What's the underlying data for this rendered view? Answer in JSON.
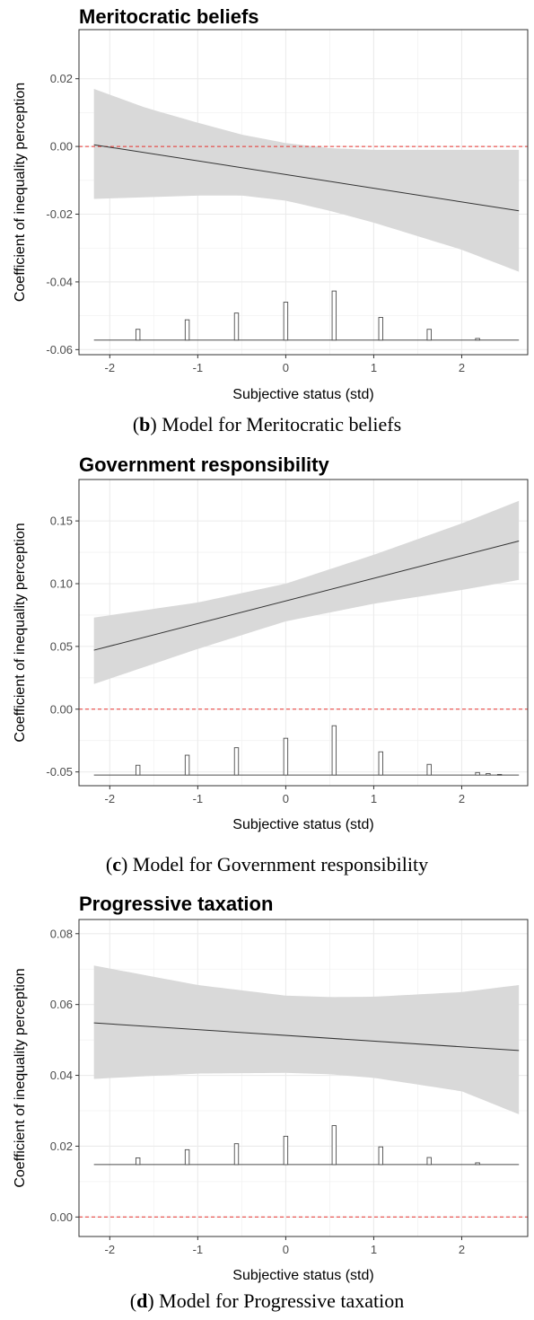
{
  "chart_data": [
    {
      "type": "line",
      "title": "Meritocratic beliefs",
      "xlabel": "Subjective status (std)",
      "ylabel": "Coefficient of inequality perception",
      "xlim": [
        -2.35,
        2.75
      ],
      "ylim": [
        -0.0615,
        0.0345
      ],
      "xticks": [
        -2,
        -1,
        0,
        1,
        2
      ],
      "xtick_labels": [
        "-2",
        "-1",
        "0",
        "1",
        "2"
      ],
      "yticks": [
        -0.06,
        -0.04,
        -0.02,
        0.0,
        0.02
      ],
      "ytick_labels": [
        "-0.06",
        "-0.04",
        "-0.02",
        "0.00",
        "0.02"
      ],
      "grid": true,
      "reference_line": {
        "y": 0,
        "color": "#e8332e",
        "style": "dashed"
      },
      "ribbon_color": "#d9d9d9",
      "line": {
        "x": [
          -2.18,
          2.65
        ],
        "y": [
          0.0005,
          -0.019
        ]
      },
      "ribbon": {
        "x": [
          -2.18,
          -1.6,
          -1.0,
          -0.5,
          0.0,
          0.5,
          1.0,
          1.5,
          2.0,
          2.65
        ],
        "upper": [
          0.017,
          0.0115,
          0.007,
          0.0035,
          0.001,
          -0.0005,
          -0.001,
          -0.001,
          -0.001,
          -0.001
        ],
        "lower": [
          -0.0155,
          -0.015,
          -0.0145,
          -0.0145,
          -0.016,
          -0.019,
          -0.0225,
          -0.0265,
          -0.0305,
          -0.037
        ]
      },
      "histogram": {
        "baseline": -0.0572,
        "x": [
          -1.68,
          -1.12,
          -0.56,
          0.0,
          0.55,
          1.08,
          1.63,
          2.18
        ],
        "top": [
          -0.054,
          -0.0512,
          -0.0492,
          -0.046,
          -0.0427,
          -0.0505,
          -0.054,
          -0.0567
        ]
      }
    },
    {
      "type": "line",
      "title": "Government responsibility",
      "xlabel": "Subjective status (std)",
      "ylabel": "Coefficient of inequality perception",
      "xlim": [
        -2.35,
        2.75
      ],
      "ylim": [
        -0.061,
        0.183
      ],
      "xticks": [
        -2,
        -1,
        0,
        1,
        2
      ],
      "xtick_labels": [
        "-2",
        "-1",
        "0",
        "1",
        "2"
      ],
      "yticks": [
        -0.05,
        0.0,
        0.05,
        0.1,
        0.15
      ],
      "ytick_labels": [
        "-0.05",
        "0.00",
        "0.05",
        "0.10",
        "0.15"
      ],
      "grid": true,
      "reference_line": {
        "y": 0,
        "color": "#e8332e",
        "style": "dashed"
      },
      "ribbon_color": "#d9d9d9",
      "line": {
        "x": [
          -2.18,
          2.65
        ],
        "y": [
          0.047,
          0.134
        ]
      },
      "ribbon": {
        "x": [
          -2.18,
          -1.0,
          0.0,
          1.0,
          2.0,
          2.65
        ],
        "upper": [
          0.073,
          0.085,
          0.1,
          0.123,
          0.148,
          0.166
        ],
        "lower": [
          0.02,
          0.048,
          0.07,
          0.084,
          0.095,
          0.103
        ]
      },
      "histogram": {
        "baseline": -0.0525,
        "x": [
          -1.68,
          -1.12,
          -0.56,
          0.0,
          0.55,
          1.08,
          1.63,
          2.18,
          2.3,
          2.43
        ],
        "top": [
          -0.0447,
          -0.0367,
          -0.0307,
          -0.0232,
          -0.0132,
          -0.034,
          -0.044,
          -0.0505,
          -0.0513,
          -0.052
        ]
      }
    },
    {
      "type": "line",
      "title": "Progressive taxation",
      "xlabel": "Subjective status (std)",
      "ylabel": "Coefficient of inequality perception",
      "xlim": [
        -2.35,
        2.75
      ],
      "ylim": [
        -0.0055,
        0.084
      ],
      "xticks": [
        -2,
        -1,
        0,
        1,
        2
      ],
      "xtick_labels": [
        "-2",
        "-1",
        "0",
        "1",
        "2"
      ],
      "yticks": [
        0.0,
        0.02,
        0.04,
        0.06,
        0.08
      ],
      "ytick_labels": [
        "0.00",
        "0.02",
        "0.04",
        "0.06",
        "0.08"
      ],
      "grid": true,
      "reference_line": {
        "y": 0,
        "color": "#e8332e",
        "style": "dashed"
      },
      "ribbon_color": "#d9d9d9",
      "line": {
        "x": [
          -2.18,
          2.65
        ],
        "y": [
          0.0548,
          0.047
        ]
      },
      "ribbon": {
        "x": [
          -2.18,
          -1.0,
          0.0,
          0.5,
          1.0,
          2.0,
          2.65
        ],
        "upper": [
          0.071,
          0.0655,
          0.0625,
          0.0621,
          0.0622,
          0.0635,
          0.0655
        ],
        "lower": [
          0.039,
          0.0405,
          0.0407,
          0.0403,
          0.0393,
          0.0355,
          0.029
        ]
      },
      "histogram": {
        "baseline": 0.0148,
        "x": [
          -1.68,
          -1.12,
          -0.56,
          0.0,
          0.55,
          1.08,
          1.63,
          2.18
        ],
        "top": [
          0.0167,
          0.019,
          0.0207,
          0.0228,
          0.0258,
          0.0198,
          0.0168,
          0.0153
        ]
      }
    }
  ],
  "captions": [
    {
      "letter": "b",
      "text": " Model for Meritocratic beliefs"
    },
    {
      "letter": "c",
      "text": " Model for Government responsibility"
    },
    {
      "letter": "d",
      "text": " Model for Progressive taxation"
    }
  ]
}
